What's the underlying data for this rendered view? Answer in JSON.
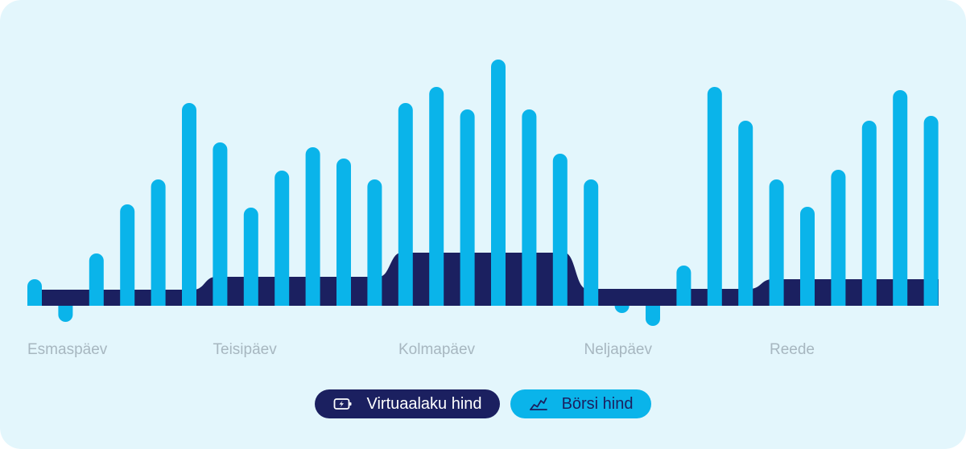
{
  "colors": {
    "background": "#e3f6fc",
    "spot_bar": "#0ab4ea",
    "virtual_area": "#1b2060",
    "day_label": "#a7b7c0",
    "legend_dark_bg": "#1b2060",
    "legend_dark_text": "#ffffff",
    "legend_light_bg": "#0ab4ea",
    "legend_light_text": "#1b2060"
  },
  "chart_data": {
    "type": "bar",
    "title": "",
    "xlabel": "",
    "ylabel": "",
    "ylim": [
      -30,
      320
    ],
    "grid": false,
    "axes_visible": false,
    "days": [
      "Esmaspäev",
      "Teisipäev",
      "Kolmapäev",
      "Neljapäev",
      "Reede"
    ],
    "series": [
      {
        "name": "Börsi hind",
        "type": "bar",
        "values": [
          33,
          -20,
          65,
          126,
          157,
          252,
          203,
          122,
          168,
          197,
          183,
          157,
          252,
          272,
          244,
          306,
          244,
          189,
          157,
          -9,
          -25,
          50,
          272,
          230,
          157,
          123,
          169,
          230,
          268,
          236
        ]
      },
      {
        "name": "Virtuaalaku hind",
        "type": "area",
        "values": [
          20,
          20,
          20,
          20,
          20,
          20,
          36,
          36,
          36,
          36,
          36,
          36,
          66,
          66,
          66,
          66,
          66,
          66,
          21,
          21,
          21,
          21,
          21,
          21,
          33,
          33,
          33,
          33,
          33,
          33
        ]
      }
    ]
  },
  "legend": {
    "virtual_label": "Virtuaalaku hind",
    "virtual_icon": "battery-charging-icon",
    "spot_label": "Börsi hind",
    "spot_icon": "line-chart-icon"
  }
}
